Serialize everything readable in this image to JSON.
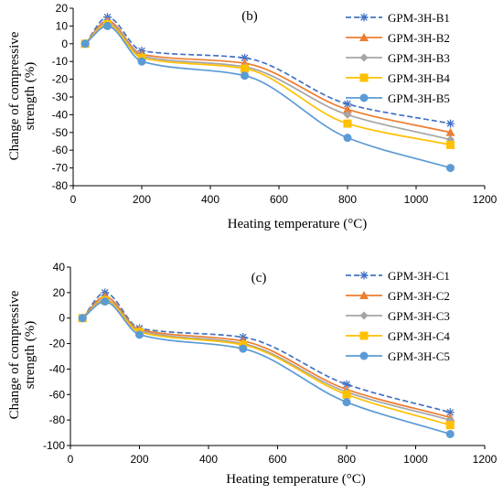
{
  "chart_data": [
    {
      "type": "line",
      "panel_label": "(b)",
      "xlabel": "Heating temperature (°C)",
      "ylabel": [
        "Change of compressive",
        "strength (%)"
      ],
      "xlim": [
        0,
        1200
      ],
      "ylim": [
        -80,
        20
      ],
      "xticks": [
        0,
        200,
        400,
        600,
        800,
        1000,
        1200
      ],
      "yticks": [
        20,
        10,
        0,
        -10,
        -20,
        -30,
        -40,
        -50,
        -60,
        -70,
        -80
      ],
      "grid": false,
      "legend_position": "top-right",
      "x": [
        35,
        100,
        200,
        500,
        800,
        1100
      ],
      "series": [
        {
          "name": "GPM-3H-B1",
          "color": "#4472C4",
          "marker": "star",
          "dashed": true,
          "values": [
            0,
            15,
            -4,
            -8,
            -34,
            -45
          ]
        },
        {
          "name": "GPM-3H-B2",
          "color": "#ED7D31",
          "marker": "triangle",
          "dashed": false,
          "values": [
            0,
            13,
            -6,
            -11,
            -37,
            -50
          ]
        },
        {
          "name": "GPM-3H-B3",
          "color": "#A5A5A5",
          "marker": "diamond",
          "dashed": false,
          "values": [
            0,
            12,
            -7,
            -13,
            -40,
            -54
          ]
        },
        {
          "name": "GPM-3H-B4",
          "color": "#FFC000",
          "marker": "square",
          "dashed": false,
          "values": [
            0,
            11,
            -8,
            -14,
            -45,
            -57
          ]
        },
        {
          "name": "GPM-3H-B5",
          "color": "#5B9BD5",
          "marker": "circle",
          "dashed": false,
          "values": [
            0,
            10,
            -10,
            -18,
            -53,
            -70
          ]
        }
      ]
    },
    {
      "type": "line",
      "panel_label": "(c)",
      "xlabel": "Heating temperature (°C)",
      "ylabel": [
        "Change of compressive",
        "strength (%)"
      ],
      "xlim": [
        0,
        1200
      ],
      "ylim": [
        -100,
        40
      ],
      "xticks": [
        0,
        200,
        400,
        600,
        800,
        1000,
        1200
      ],
      "yticks": [
        40,
        20,
        0,
        -20,
        -40,
        -60,
        -80,
        -100
      ],
      "grid": false,
      "legend_position": "right",
      "x": [
        35,
        100,
        200,
        500,
        800,
        1100
      ],
      "series": [
        {
          "name": "GPM-3H-C1",
          "color": "#4472C4",
          "marker": "star",
          "dashed": true,
          "values": [
            0,
            20,
            -8,
            -15,
            -52,
            -74
          ]
        },
        {
          "name": "GPM-3H-C2",
          "color": "#ED7D31",
          "marker": "triangle",
          "dashed": false,
          "values": [
            0,
            17,
            -9,
            -18,
            -56,
            -78
          ]
        },
        {
          "name": "GPM-3H-C3",
          "color": "#A5A5A5",
          "marker": "diamond",
          "dashed": false,
          "values": [
            0,
            15,
            -10,
            -20,
            -58,
            -80
          ]
        },
        {
          "name": "GPM-3H-C4",
          "color": "#FFC000",
          "marker": "square",
          "dashed": false,
          "values": [
            0,
            14,
            -11,
            -21,
            -60,
            -84
          ]
        },
        {
          "name": "GPM-3H-C5",
          "color": "#5B9BD5",
          "marker": "circle",
          "dashed": false,
          "values": [
            0,
            13,
            -13,
            -24,
            -66,
            -91
          ]
        }
      ]
    }
  ]
}
